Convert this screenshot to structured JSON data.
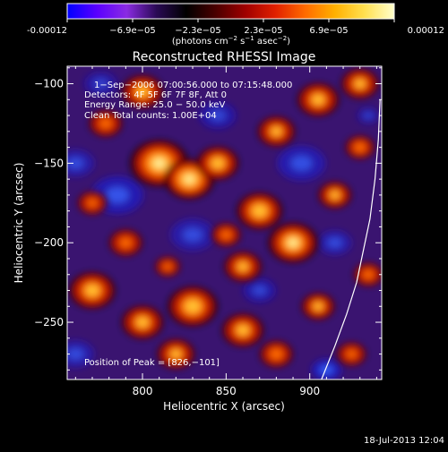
{
  "footer": {
    "timestamp": "18-Jul-2013 12:04"
  },
  "colorbar": {
    "ticks": [
      "-0.00012",
      "−6.9e−05",
      "−2.3e−05",
      "2.3e−05",
      "6.9e−05",
      "0.00012"
    ],
    "unit_label": "(photons cm",
    "unit_exp1": "−2",
    "unit_mid": " s",
    "unit_exp2": "−1",
    "unit_mid2": " asec",
    "unit_exp3": "−2",
    "unit_end": ")",
    "colors": [
      "#0000ff",
      "#5a00ff",
      "#8a2be2",
      "#2a0a55",
      "#000000",
      "#4a0000",
      "#a00000",
      "#e02000",
      "#ff6a00",
      "#ffb000",
      "#ffe050",
      "#ffffcc"
    ]
  },
  "chart_data": {
    "type": "heatmap",
    "title": "Reconstructed RHESSI Image",
    "xlabel": "Heliocentric X (arcsec)",
    "ylabel": "Heliocentric Y (arcsec)",
    "xlim": [
      755,
      943
    ],
    "ylim": [
      -286,
      -89
    ],
    "x_ticks": [
      800,
      850,
      900
    ],
    "y_ticks": [
      -100,
      -150,
      -200,
      -250
    ],
    "annotations": {
      "time": "1−Sep−2006 07:00:56.000 to 07:15:48.000",
      "detectors": "Detectors: 4F 5F 6F 7F 8F, Att 0",
      "energy": "Energy Range: 25.0 − 50.0 keV",
      "clean": "Clean     Total counts: 1.00E+04",
      "position": "Position of Peak = [826,−101]"
    },
    "limb_curve": [
      [
        907,
        -286
      ],
      [
        915,
        -265
      ],
      [
        922,
        -245
      ],
      [
        928,
        -225
      ],
      [
        932,
        -205
      ],
      [
        936,
        -185
      ],
      [
        939,
        -160
      ],
      [
        941,
        -135
      ],
      [
        942,
        -110
      ]
    ],
    "hot_regions": [
      [
        810,
        -150,
        14,
        0.95
      ],
      [
        828,
        -160,
        12,
        1.0
      ],
      [
        845,
        -150,
        10,
        0.8
      ],
      [
        800,
        -105,
        10,
        0.75
      ],
      [
        778,
        -125,
        8,
        0.6
      ],
      [
        880,
        -130,
        9,
        0.7
      ],
      [
        905,
        -110,
        10,
        0.75
      ],
      [
        930,
        -100,
        9,
        0.7
      ],
      [
        870,
        -180,
        11,
        0.85
      ],
      [
        890,
        -200,
        12,
        0.9
      ],
      [
        860,
        -215,
        9,
        0.7
      ],
      [
        915,
        -170,
        8,
        0.7
      ],
      [
        930,
        -140,
        7,
        0.65
      ],
      [
        770,
        -230,
        11,
        0.8
      ],
      [
        800,
        -250,
        10,
        0.75
      ],
      [
        830,
        -240,
        12,
        0.85
      ],
      [
        820,
        -270,
        9,
        0.7
      ],
      [
        860,
        -255,
        10,
        0.75
      ],
      [
        880,
        -270,
        8,
        0.65
      ],
      [
        905,
        -240,
        8,
        0.7
      ],
      [
        790,
        -200,
        8,
        0.6
      ],
      [
        850,
        -195,
        7,
        0.6
      ],
      [
        770,
        -175,
        7,
        0.55
      ],
      [
        935,
        -220,
        7,
        0.6
      ],
      [
        925,
        -270,
        7,
        0.55
      ],
      [
        815,
        -215,
        6,
        0.55
      ]
    ],
    "cold_regions": [
      [
        785,
        -170,
        14,
        0.7
      ],
      [
        830,
        -195,
        12,
        0.6
      ],
      [
        895,
        -150,
        13,
        0.65
      ],
      [
        845,
        -120,
        10,
        0.55
      ],
      [
        760,
        -150,
        10,
        0.6
      ],
      [
        760,
        -270,
        10,
        0.6
      ],
      [
        910,
        -280,
        8,
        0.8
      ],
      [
        870,
        -230,
        9,
        0.55
      ],
      [
        915,
        -200,
        9,
        0.6
      ],
      [
        775,
        -100,
        9,
        0.5
      ],
      [
        935,
        -120,
        6,
        0.5
      ]
    ]
  }
}
